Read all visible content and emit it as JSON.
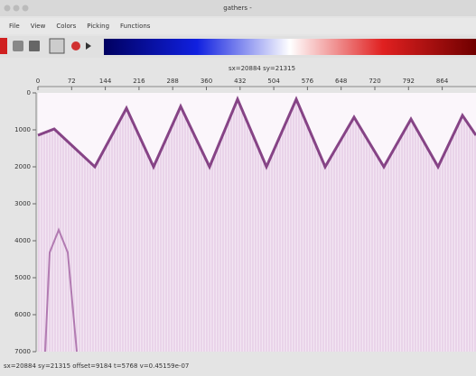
{
  "window": {
    "title": "gathers -"
  },
  "menu": {
    "items": [
      "File",
      "View",
      "Colors",
      "Picking",
      "Functions"
    ]
  },
  "plot": {
    "header": "sx=20884 sy=21315",
    "x_ticks": [
      "0",
      "72",
      "144",
      "216",
      "288",
      "360",
      "432",
      "504",
      "576",
      "648",
      "720",
      "792",
      "864"
    ],
    "y_ticks": [
      "0",
      "1000",
      "2000",
      "3000",
      "4000",
      "5000",
      "6000",
      "7000"
    ]
  },
  "status": "sx=20884 sy=21315 offset=9184 t=5768 v=0.45159e-07"
}
